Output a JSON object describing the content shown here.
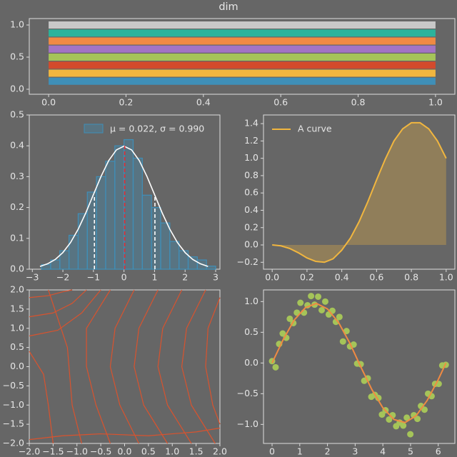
{
  "title": "dim",
  "chart_data": [
    {
      "type": "lines",
      "lines": [
        {
          "color": "#c8c8c8",
          "x": [
            0,
            1
          ],
          "y": 1.0
        },
        {
          "color": "#2bb39c",
          "x": [
            0,
            1
          ],
          "y": 0.875
        },
        {
          "color": "#f08a43",
          "x": [
            0,
            1
          ],
          "y": 0.75
        },
        {
          "color": "#a274c4",
          "x": [
            0,
            1
          ],
          "y": 0.625
        },
        {
          "color": "#a5c459",
          "x": [
            0,
            1
          ],
          "y": 0.5
        },
        {
          "color": "#d34a2c",
          "x": [
            0,
            1
          ],
          "y": 0.375
        },
        {
          "color": "#f1b63f",
          "x": [
            0,
            1
          ],
          "y": 0.25
        },
        {
          "color": "#3f8fb8",
          "x": [
            0,
            1
          ],
          "y": 0.125
        }
      ],
      "xlim": [
        -0.05,
        1.05
      ],
      "ylim": [
        -0.078,
        1.1
      ],
      "xticks": [
        {
          "value": 0,
          "label": "0.0"
        },
        0.2,
        0.4,
        0.6,
        0.8,
        {
          "value": 1,
          "label": "1.0"
        }
      ],
      "yticks": [
        {
          "value": 0,
          "label": "0.0"
        },
        0.5,
        {
          "value": 1,
          "label": "1.0"
        }
      ]
    },
    {
      "type": "histogram",
      "name": "μ = 0.022, σ = 0.990",
      "color": "#3f8fb8",
      "legend": "upper right",
      "bins": [
        -2.7,
        -2.4,
        -2.1,
        -1.8,
        -1.5,
        -1.2,
        -0.9,
        -0.6,
        -0.3,
        0.0,
        0.3,
        0.6,
        0.9,
        1.2,
        1.5,
        1.8,
        2.1,
        2.4,
        2.7,
        3.0
      ],
      "values": [
        0.015,
        0.03,
        0.06,
        0.11,
        0.18,
        0.25,
        0.3,
        0.35,
        0.4,
        0.42,
        0.36,
        0.24,
        0.2,
        0.15,
        0.09,
        0.06,
        0.04,
        0.03,
        0.01
      ],
      "curve": {
        "color": "#ffffff",
        "x": [
          -2.75,
          -2.5,
          -2.25,
          -2.0,
          -1.75,
          -1.5,
          -1.25,
          -1.0,
          -0.75,
          -0.5,
          -0.25,
          0.0,
          0.25,
          0.5,
          0.75,
          1.0,
          1.25,
          1.5,
          1.75,
          2.0,
          2.25,
          2.5,
          2.75
        ],
        "y": [
          0.0091,
          0.0175,
          0.0317,
          0.054,
          0.0863,
          0.1295,
          0.1826,
          0.242,
          0.3011,
          0.3521,
          0.3867,
          0.399,
          0.3867,
          0.3521,
          0.3011,
          0.242,
          0.1826,
          0.1295,
          0.0863,
          0.054,
          0.0317,
          0.0175,
          0.0091
        ]
      },
      "vlines": [
        {
          "x": -0.968,
          "y": 0.24,
          "color": "#ffffff"
        },
        {
          "x": 0.022,
          "y": 0.4,
          "color": "#e8282a"
        },
        {
          "x": 1.012,
          "y": 0.24,
          "color": "#ffffff"
        }
      ],
      "xlim": [
        -3.1,
        3.14
      ],
      "ylim": [
        0,
        0.5
      ],
      "xticks": [
        {
          "value": -3,
          "label": "−3"
        },
        {
          "value": -2,
          "label": "−2"
        },
        {
          "value": -1,
          "label": "−1"
        },
        0,
        1,
        2,
        3
      ],
      "yticks": [
        {
          "value": 0,
          "label": "0.0"
        },
        0.1,
        0.2,
        0.3,
        0.4,
        0.5
      ]
    },
    {
      "type": "area",
      "legend": "upper left",
      "x": [
        0,
        0.05,
        0.1,
        0.15,
        0.2,
        0.25,
        0.3,
        0.35,
        0.4,
        0.45,
        0.5,
        0.55,
        0.6,
        0.65,
        0.7,
        0.75,
        0.8,
        0.85,
        0.9,
        0.95,
        1.0
      ],
      "series": [
        {
          "name": "A curve",
          "color": "#f1b63f",
          "values": [
            0,
            -0.01,
            -0.04,
            -0.09,
            -0.15,
            -0.19,
            -0.2,
            -0.16,
            -0.06,
            0.08,
            0.27,
            0.5,
            0.75,
            0.99,
            1.2,
            1.34,
            1.41,
            1.41,
            1.34,
            1.2,
            1.0
          ]
        }
      ],
      "xlim": [
        -0.05,
        1.05
      ],
      "ylim": [
        -0.28,
        1.5
      ],
      "xticks": [
        {
          "value": 0,
          "label": "0.0"
        },
        0.2,
        0.4,
        0.6,
        0.8,
        {
          "value": 1,
          "label": "1.0"
        }
      ],
      "yticks": [
        {
          "value": -0.2,
          "label": "−0.2"
        },
        {
          "value": 0,
          "label": "0.0"
        },
        0.2,
        0.4,
        0.6,
        0.8,
        {
          "value": 1,
          "label": "1.0"
        },
        1.2,
        1.4
      ]
    },
    {
      "type": "streamplot",
      "color": "#d9532e",
      "streamlines": [
        {
          "x": [
            -2,
            -1.6,
            -1.3,
            -1.1
          ],
          "y": [
            1.8,
            1.85,
            1.95,
            2
          ]
        },
        {
          "x": [
            -2,
            -1.5,
            -1.1,
            -0.8
          ],
          "y": [
            1.3,
            1.4,
            1.65,
            2
          ]
        },
        {
          "x": [
            -2,
            -1.4,
            -0.9,
            -0.5
          ],
          "y": [
            0.8,
            0.95,
            1.4,
            2
          ]
        },
        {
          "x": [
            -2,
            -1.7,
            -1.6,
            -1.5
          ],
          "y": [
            0.4,
            -0.2,
            -1,
            -2
          ]
        },
        {
          "x": [
            -1.6,
            -1.2,
            -1.1,
            -0.9
          ],
          "y": [
            2,
            0.5,
            -1,
            -2
          ]
        },
        {
          "x": [
            -0.3,
            -0.8,
            -0.8,
            -0.6,
            -0.3
          ],
          "y": [
            2,
            1,
            0,
            -1,
            -2
          ]
        },
        {
          "x": [
            0.2,
            -0.2,
            -0.3,
            -0.1,
            0.3
          ],
          "y": [
            2,
            1,
            0,
            -1,
            -2
          ]
        },
        {
          "x": [
            0.7,
            0.3,
            0.2,
            0.4,
            0.9
          ],
          "y": [
            2,
            1,
            0,
            -1,
            -2
          ]
        },
        {
          "x": [
            1.2,
            0.8,
            0.7,
            0.9,
            1.4
          ],
          "y": [
            2,
            1,
            0,
            -1,
            -2
          ]
        },
        {
          "x": [
            1.7,
            1.3,
            1.2,
            1.4,
            1.9
          ],
          "y": [
            2,
            1,
            0,
            -1,
            -2
          ]
        },
        {
          "x": [
            2,
            1.75,
            1.7,
            1.85,
            2
          ],
          "y": [
            1.8,
            1,
            0,
            -1,
            -1.5
          ]
        },
        {
          "x": [
            -2,
            -1.3,
            -0.5,
            0.5,
            1.5,
            2
          ],
          "y": [
            -1.9,
            -1.8,
            -1.75,
            -1.8,
            -1.7,
            -1.6
          ]
        }
      ],
      "xlim": [
        -2,
        2
      ],
      "ylim": [
        -2,
        2
      ],
      "xticks": [
        {
          "value": -2,
          "label": "−2.0"
        },
        {
          "value": -1.5,
          "label": "−1.5"
        },
        {
          "value": -1,
          "label": "−1.0"
        },
        {
          "value": -0.5,
          "label": "−0.5"
        },
        {
          "value": 0,
          "label": "0.0"
        },
        0.5,
        {
          "value": 1,
          "label": "1.0"
        },
        1.5,
        {
          "value": 2,
          "label": "2.0"
        }
      ],
      "yticks": [
        {
          "value": -2,
          "label": "−2.0"
        },
        {
          "value": -1.5,
          "label": "−1.5"
        },
        {
          "value": -1,
          "label": "−1.0"
        },
        {
          "value": -0.5,
          "label": "−0.5"
        },
        {
          "value": 0,
          "label": "0.0"
        },
        0.5,
        {
          "value": 1,
          "label": "1.0"
        },
        1.5,
        {
          "value": 2,
          "label": "2.0"
        }
      ]
    },
    {
      "type": "scatter",
      "color": "#a5c459",
      "x": [
        0,
        0.128,
        0.256,
        0.384,
        0.512,
        0.64,
        0.768,
        0.896,
        1.024,
        1.152,
        1.28,
        1.408,
        1.536,
        1.664,
        1.792,
        1.92,
        2.048,
        2.176,
        2.304,
        2.432,
        2.56,
        2.688,
        2.816,
        2.944,
        3.072,
        3.2,
        3.328,
        3.456,
        3.584,
        3.712,
        3.84,
        3.968,
        4.096,
        4.224,
        4.352,
        4.48,
        4.608,
        4.736,
        4.864,
        4.992,
        5.12,
        5.248,
        5.376,
        5.504,
        5.632,
        5.76,
        5.888,
        6.016,
        6.144,
        6.272
      ],
      "values": [
        0.03,
        -0.07,
        0.31,
        0.48,
        0.41,
        0.72,
        0.65,
        0.82,
        0.98,
        0.82,
        0.94,
        1.09,
        0.95,
        1.08,
        0.86,
        1.0,
        0.79,
        0.85,
        0.67,
        0.75,
        0.35,
        0.52,
        0.27,
        0.3,
        -0.01,
        -0.02,
        -0.29,
        -0.25,
        -0.55,
        -0.52,
        -0.57,
        -0.84,
        -0.77,
        -0.92,
        -0.85,
        -1.03,
        -0.97,
        -1.02,
        -0.89,
        -1.16,
        -0.85,
        -0.91,
        -0.7,
        -0.76,
        -0.5,
        -0.54,
        -0.34,
        -0.34,
        -0.04,
        -0.03
      ],
      "line": {
        "color": "#f08a43",
        "x": [
          0,
          0.4,
          0.8,
          1.2,
          1.6,
          2.0,
          2.4,
          2.8,
          3.2,
          3.6,
          4.0,
          4.4,
          4.8,
          5.2,
          5.6,
          6.0,
          6.28
        ],
        "y": [
          0,
          0.38,
          0.7,
          0.9,
          0.97,
          0.88,
          0.66,
          0.33,
          -0.06,
          -0.43,
          -0.73,
          -0.92,
          -0.97,
          -0.86,
          -0.61,
          -0.27,
          0
        ]
      },
      "xlim": [
        -0.31,
        6.6
      ],
      "ylim": [
        -1.31,
        1.19
      ],
      "xticks": [
        0,
        1,
        2,
        3,
        4,
        5,
        6
      ],
      "yticks": [
        {
          "value": -1,
          "label": "−1.0"
        },
        {
          "value": -0.5,
          "label": "−0.5"
        },
        {
          "value": 0,
          "label": "0.0"
        },
        0.5,
        {
          "value": 1,
          "label": "1.0"
        }
      ]
    }
  ]
}
